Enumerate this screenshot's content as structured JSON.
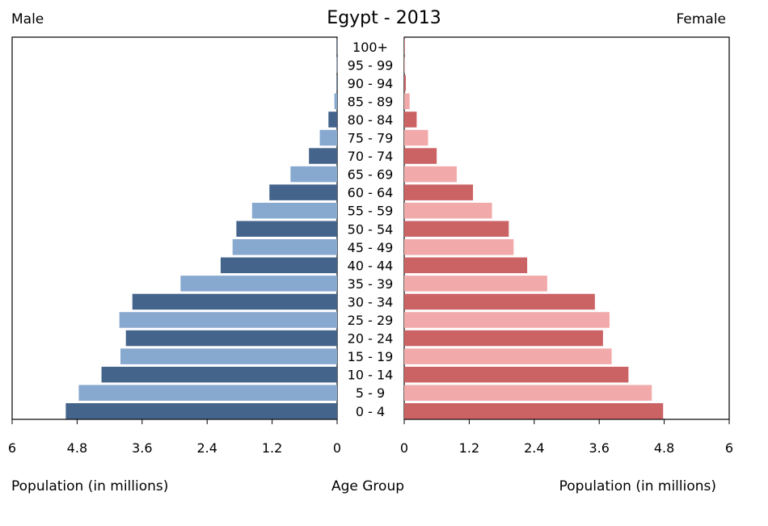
{
  "chart_data": {
    "type": "bar",
    "title": "Egypt - 2013",
    "left_label": "Male",
    "right_label": "Female",
    "center_label": "Age Group",
    "xlabel_left": "Population (in millions)",
    "xlabel_right": "Population (in millions)",
    "xlim": [
      0,
      6
    ],
    "x_ticks": [
      0,
      1.2,
      2.4,
      3.6,
      4.8,
      6
    ],
    "x_tick_labels": [
      "0",
      "1.2",
      "2.4",
      "3.6",
      "4.8",
      "6"
    ],
    "categories": [
      "0 - 4",
      "5 - 9",
      "10 - 14",
      "15 - 19",
      "20 - 24",
      "25 - 29",
      "30 - 34",
      "35 - 39",
      "40 - 44",
      "45 - 49",
      "50 - 54",
      "55 - 59",
      "60 - 64",
      "65 - 69",
      "70 - 74",
      "75 - 79",
      "80 - 84",
      "85 - 89",
      "90 - 94",
      "95 - 99",
      "100+"
    ],
    "series": [
      {
        "name": "Male",
        "values": [
          5.01,
          4.77,
          4.35,
          4.0,
          3.9,
          4.02,
          3.78,
          2.89,
          2.15,
          1.93,
          1.86,
          1.57,
          1.25,
          0.86,
          0.52,
          0.32,
          0.16,
          0.05,
          0.01,
          0.005,
          0.002
        ],
        "colors": [
          "#44648b",
          "#87a8cf"
        ]
      },
      {
        "name": "Female",
        "values": [
          4.78,
          4.57,
          4.14,
          3.83,
          3.67,
          3.79,
          3.52,
          2.64,
          2.27,
          2.02,
          1.93,
          1.62,
          1.27,
          0.97,
          0.6,
          0.44,
          0.23,
          0.1,
          0.03,
          0.01,
          0.005
        ],
        "colors": [
          "#cb6264",
          "#f2a9a9"
        ]
      }
    ],
    "grid": false,
    "legend": "none"
  }
}
